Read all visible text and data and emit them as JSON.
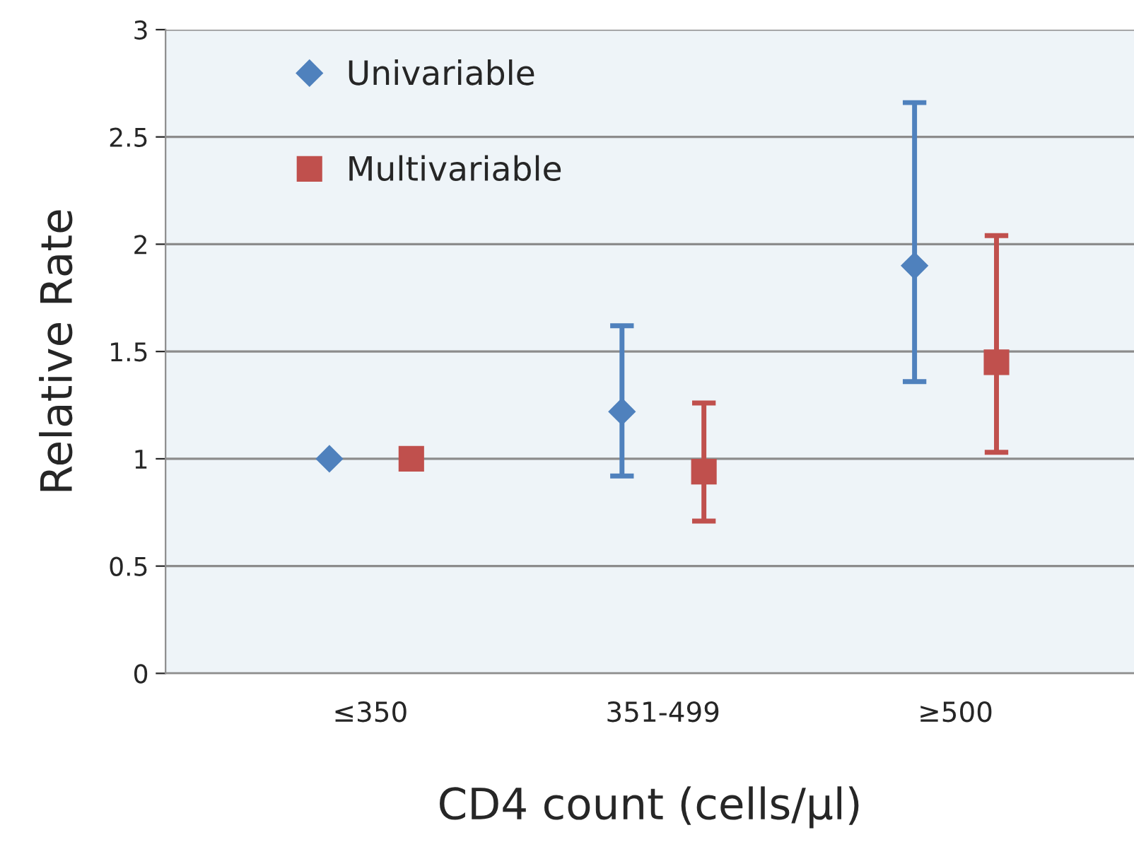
{
  "chart_data": {
    "type": "scatter",
    "xlabel": "CD4 count (cells/µl)",
    "ylabel": "Relative Rate",
    "categories": [
      "≤350",
      "351-499",
      "≥500"
    ],
    "series": [
      {
        "name": "Univariable",
        "color": "#4f81bd",
        "marker": "diamond",
        "values": [
          1.0,
          1.22,
          1.9
        ],
        "errors": [
          null,
          [
            0.92,
            1.62
          ],
          [
            1.36,
            2.66
          ]
        ]
      },
      {
        "name": "Multivariable",
        "color": "#c0504d",
        "marker": "square",
        "values": [
          1.0,
          0.94,
          1.45
        ],
        "errors": [
          null,
          [
            0.71,
            1.26
          ],
          [
            1.03,
            2.04
          ]
        ]
      }
    ],
    "ylim": [
      0,
      3
    ],
    "yticks": [
      0,
      0.5,
      1,
      1.5,
      2,
      2.5,
      3
    ],
    "grid": "y",
    "legend": "top left"
  }
}
